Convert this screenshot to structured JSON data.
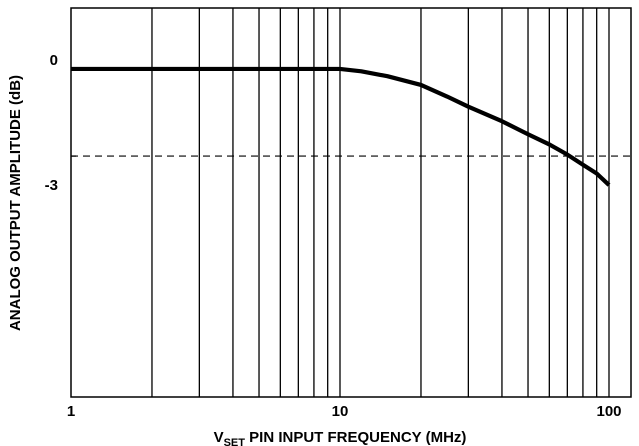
{
  "chart_data": {
    "type": "line",
    "x_scale": "log",
    "xlim": [
      1,
      120
    ],
    "ylim": [
      -11.3,
      2.1
    ],
    "grid": {
      "vertical": true,
      "horizontal": false
    },
    "x_tick_labels": [
      {
        "value": 1,
        "label": "1"
      },
      {
        "value": 10,
        "label": "10"
      },
      {
        "value": 100,
        "label": "100"
      }
    ],
    "y_tick_labels": [
      {
        "value": 0,
        "label": "0"
      },
      {
        "value": -3,
        "label": "-3"
      }
    ],
    "xlabel_main": "V",
    "xlabel_sub": "SET",
    "xlabel_rest": " PIN INPUT FREQUENCY (MHz)",
    "ylabel": "ANALOG OUTPUT AMPLITUDE (dB)",
    "reference_line": {
      "y": -3,
      "style": "dashed"
    },
    "series": [
      {
        "x": [
          1,
          2,
          5,
          10,
          12,
          15,
          20,
          25,
          30,
          40,
          50,
          60,
          70,
          80,
          90,
          100
        ],
        "y": [
          0,
          0,
          0,
          0,
          -0.08,
          -0.25,
          -0.55,
          -0.95,
          -1.3,
          -1.8,
          -2.25,
          -2.6,
          -2.95,
          -3.3,
          -3.6,
          -4.0
        ]
      }
    ]
  }
}
